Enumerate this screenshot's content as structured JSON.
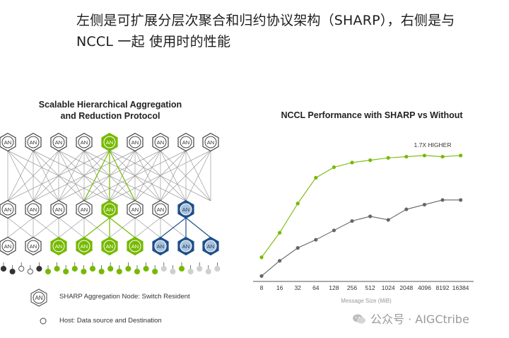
{
  "heading": {
    "line1": "左侧是可扩展分层次聚合和归约协议架构（SHARP），右侧是与",
    "line2": "NCCL 一起 使用时的性能"
  },
  "diagram": {
    "title_line1": "Scalable Hierarchical Aggregation",
    "title_line2": "and Reduction Protocol",
    "node_label": "AN",
    "rows": {
      "top": [
        "gray",
        "gray",
        "gray",
        "gray",
        "green",
        "gray",
        "gray",
        "gray",
        "gray"
      ],
      "middle": [
        "gray",
        "gray",
        "gray",
        "gray",
        "green",
        "gray",
        "gray",
        "blue",
        "blank"
      ],
      "bottom": [
        "gray",
        "gray",
        "green",
        "green",
        "green",
        "green",
        "blue",
        "blue",
        "blue"
      ]
    },
    "hosts": [
      "black",
      "black",
      "white",
      "white",
      "black",
      "green",
      "green",
      "green",
      "green",
      "green",
      "green",
      "green",
      "green",
      "green",
      "green",
      "green",
      "green",
      "green",
      "gray",
      "gray",
      "green",
      "gray",
      "gray",
      "gray",
      "gray"
    ],
    "legend": {
      "node_text": "SHARP Aggregation Node: Switch Resident",
      "host_text": "Host: Data source and Destination"
    },
    "colors": {
      "gray": "#ffffff",
      "green": "#76b900",
      "blue": "#1f4f8a",
      "line": "#9a9a9a"
    }
  },
  "chart_data": {
    "type": "line",
    "title": "NCCL Performance with SHARP vs Without",
    "categories": [
      "8",
      "16",
      "32",
      "64",
      "128",
      "256",
      "512",
      "1024",
      "2048",
      "4096",
      "8192",
      "16384"
    ],
    "xlabel": "Message Size (MiB)",
    "ylabel": "",
    "series": [
      {
        "values": [
          0.17,
          0.38,
          0.63,
          0.85,
          0.94,
          0.98,
          1.0,
          1.02,
          1.03,
          1.04,
          1.03,
          1.04
        ],
        "color": "#76b900"
      },
      {
        "values": [
          0.01,
          0.14,
          0.25,
          0.32,
          0.4,
          0.48,
          0.52,
          0.49,
          0.58,
          0.62,
          0.66,
          0.66
        ],
        "color": "#666666"
      }
    ],
    "annotation": "1.7X HIGHER",
    "ylim": [
      0,
      1.1
    ],
    "grid": false
  },
  "watermark": {
    "text": "公众号 · AIGCtribe"
  }
}
